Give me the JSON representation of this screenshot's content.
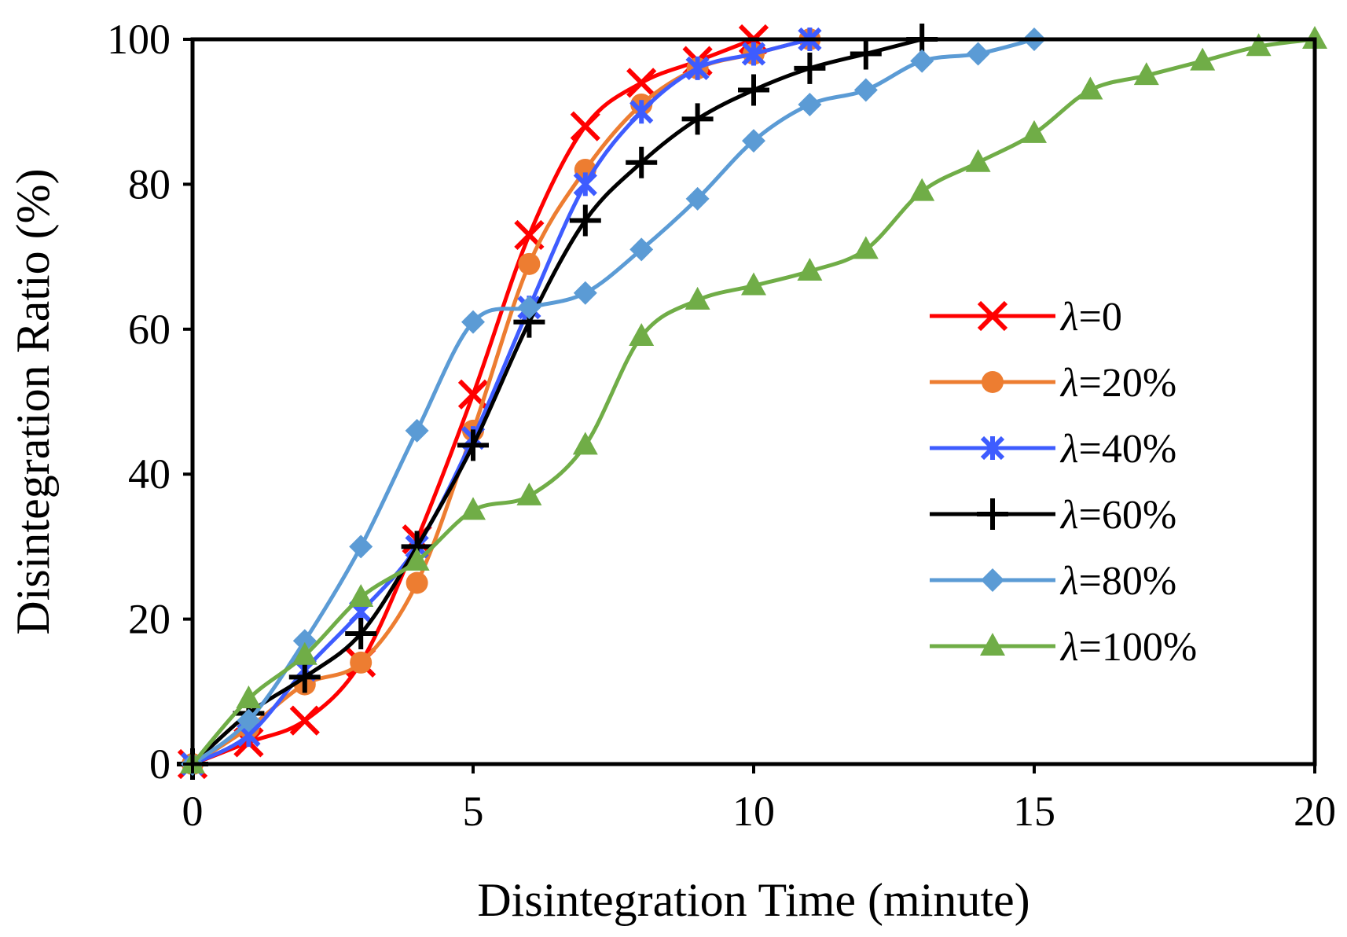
{
  "chart_data": {
    "type": "line",
    "title": "",
    "xlabel": "Disintegration Time (minute)",
    "ylabel": "Disintegration Ratio (%)",
    "xlim": [
      0,
      20
    ],
    "ylim": [
      0,
      100
    ],
    "xticks": [
      0,
      5,
      10,
      15,
      20
    ],
    "yticks": [
      0,
      20,
      40,
      60,
      80,
      100
    ],
    "grid": false,
    "legend_position": "right",
    "series": [
      {
        "name": "λ=0",
        "legend_symbol": "λ",
        "legend_suffix": "=0",
        "color": "#ff0000",
        "marker": "x",
        "x": [
          0,
          1,
          2,
          3,
          4,
          5,
          6,
          7,
          8,
          9,
          10
        ],
        "y": [
          0,
          3,
          6,
          14,
          31,
          51,
          73,
          88,
          94,
          97,
          100
        ]
      },
      {
        "name": "λ=20%",
        "legend_symbol": "λ",
        "legend_suffix": "=20%",
        "color": "#ed7d31",
        "marker": "circle",
        "x": [
          0,
          1,
          2,
          3,
          4,
          5,
          6,
          7,
          8,
          9,
          10,
          11
        ],
        "y": [
          0,
          5,
          11,
          14,
          25,
          46,
          69,
          82,
          91,
          96,
          98,
          100
        ]
      },
      {
        "name": "λ=40%",
        "legend_symbol": "λ",
        "legend_suffix": "=40%",
        "color": "#3e5cff",
        "marker": "asterisk",
        "x": [
          0,
          1,
          2,
          3,
          4,
          5,
          6,
          7,
          8,
          9,
          10,
          11
        ],
        "y": [
          0,
          4,
          13,
          21,
          30,
          45,
          63,
          80,
          90,
          96,
          98,
          100
        ]
      },
      {
        "name": "λ=60%",
        "legend_symbol": "λ",
        "legend_suffix": "=60%",
        "color": "#000000",
        "marker": "plus",
        "x": [
          0,
          1,
          2,
          3,
          4,
          5,
          6,
          7,
          8,
          9,
          10,
          11,
          12,
          13
        ],
        "y": [
          0,
          7,
          12,
          18,
          30,
          44,
          61,
          75,
          83,
          89,
          93,
          96,
          98,
          100
        ]
      },
      {
        "name": "λ=80%",
        "legend_symbol": "λ",
        "legend_suffix": "=80%",
        "color": "#5b9bd5",
        "marker": "diamond",
        "x": [
          0,
          1,
          2,
          3,
          4,
          5,
          6,
          7,
          8,
          9,
          10,
          11,
          12,
          13,
          14,
          15
        ],
        "y": [
          0,
          6,
          17,
          30,
          46,
          61,
          63,
          65,
          71,
          78,
          86,
          91,
          93,
          97,
          98,
          100
        ]
      },
      {
        "name": "λ=100%",
        "legend_symbol": "λ",
        "legend_suffix": "=100%",
        "color": "#70ad47",
        "marker": "triangle",
        "x": [
          0,
          1,
          2,
          3,
          4,
          5,
          6,
          7,
          8,
          9,
          10,
          11,
          12,
          13,
          14,
          15,
          16,
          17,
          18,
          19,
          20
        ],
        "y": [
          0,
          9,
          15,
          23,
          28,
          35,
          37,
          44,
          59,
          64,
          66,
          68,
          71,
          79,
          83,
          87,
          93,
          95,
          97,
          99,
          100
        ]
      }
    ]
  }
}
